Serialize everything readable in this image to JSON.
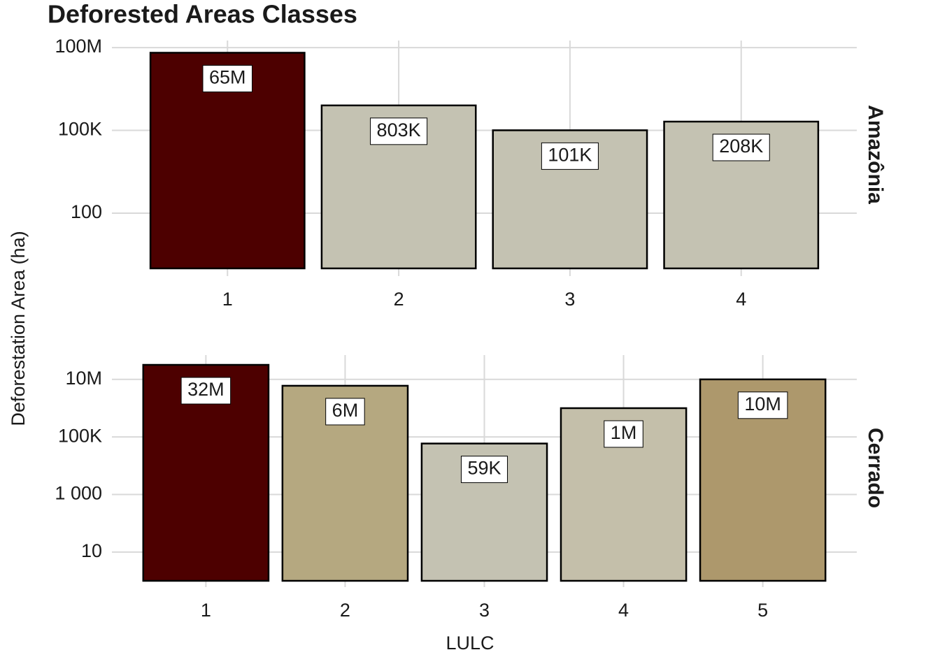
{
  "title": "Deforested Areas Classes",
  "xlabel": "LULC",
  "ylabel": "Deforestation Area (ha)",
  "chart_data": [
    {
      "type": "bar",
      "facet": "Amazônia",
      "categories": [
        "1",
        "2",
        "3",
        "4"
      ],
      "values": [
        65000000,
        803000,
        101000,
        208000
      ],
      "value_labels": [
        "65M",
        "803K",
        "101K",
        "208K"
      ],
      "colors": [
        "#4d0000",
        "#c4c2b2",
        "#c4c2b2",
        "#c4c2b2"
      ],
      "log_scale": true,
      "grid": true,
      "ylim": [
        1,
        180000000
      ],
      "yticks": [
        100,
        {
          "value": 100000,
          "label": "100K"
        },
        {
          "value": 100000000,
          "label": "100M"
        }
      ]
    },
    {
      "type": "bar",
      "facet": "Cerrado",
      "categories": [
        "1",
        "2",
        "3",
        "4",
        "5"
      ],
      "values": [
        32000000,
        6000000,
        59000,
        1000000,
        10000000
      ],
      "value_labels": [
        "32M",
        "6M",
        "59K",
        "1M",
        "10M"
      ],
      "colors": [
        "#4d0000",
        "#b5a880",
        "#c4c2b2",
        "#c4bfaa",
        "#ad986c"
      ],
      "log_scale": true,
      "grid": true,
      "ylim": [
        1,
        70000000
      ],
      "yticks": [
        10,
        {
          "value": 1000,
          "label": "1 000"
        },
        {
          "value": 100000,
          "label": "100K"
        },
        {
          "value": 10000000,
          "label": "10M"
        }
      ]
    }
  ]
}
